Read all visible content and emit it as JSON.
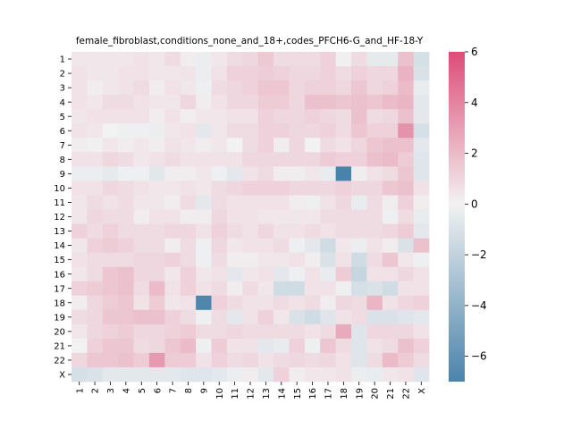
{
  "chart_data": {
    "type": "heatmap",
    "title": "female_fibroblast,conditions_none_and_18+,codes_PFCH6-G_and_HF-18-Y",
    "xlabel": "",
    "ylabel": "",
    "row_labels": [
      "1",
      "2",
      "3",
      "4",
      "5",
      "6",
      "7",
      "8",
      "9",
      "10",
      "11",
      "12",
      "13",
      "14",
      "15",
      "16",
      "17",
      "18",
      "19",
      "20",
      "21",
      "22",
      "X"
    ],
    "col_labels": [
      "1",
      "2",
      "3",
      "4",
      "5",
      "6",
      "7",
      "8",
      "9",
      "10",
      "11",
      "12",
      "13",
      "14",
      "15",
      "16",
      "17",
      "18",
      "19",
      "20",
      "21",
      "22",
      "X"
    ],
    "colorbar": {
      "vmin": -7,
      "vmax": 6,
      "ticks": [
        "6",
        "4",
        "2",
        "0",
        "−2",
        "−4",
        "−6"
      ],
      "tick_values": [
        6,
        4,
        2,
        0,
        -2,
        -4,
        -6
      ],
      "colors": {
        "low": "#4a83aa",
        "mid": "#f2f2f2",
        "high": "#dc4d78"
      }
    },
    "values": [
      [
        0.4,
        0.4,
        0.4,
        0.4,
        0.6,
        0.4,
        0.8,
        0.2,
        -0.3,
        0.4,
        0.8,
        1.0,
        1.5,
        0.8,
        0.8,
        0.8,
        1.2,
        -0.1,
        0.8,
        -0.5,
        -0.5,
        1.8,
        -1.2
      ],
      [
        0.6,
        0.4,
        0.4,
        0.6,
        0.6,
        0.4,
        0.4,
        0.5,
        -0.3,
        0.6,
        1.2,
        1.2,
        1.3,
        1.2,
        1.0,
        1.0,
        1.2,
        0.8,
        1.2,
        1.0,
        1.0,
        2.3,
        -1.0
      ],
      [
        0.6,
        0.2,
        0.4,
        0.6,
        0.8,
        0.2,
        0.6,
        0.4,
        -0.2,
        0.8,
        1.0,
        1.2,
        1.6,
        1.6,
        1.0,
        1.2,
        1.2,
        1.0,
        1.6,
        1.0,
        1.2,
        2.0,
        -0.4
      ],
      [
        0.6,
        0.4,
        0.8,
        0.8,
        0.6,
        0.4,
        0.4,
        1.0,
        0.2,
        0.6,
        1.0,
        1.0,
        1.4,
        1.4,
        1.0,
        1.8,
        1.8,
        1.6,
        1.8,
        1.6,
        2.0,
        2.2,
        -0.6
      ],
      [
        0.4,
        0.6,
        0.6,
        0.6,
        0.6,
        0.2,
        0.6,
        0.2,
        0.4,
        0.4,
        0.6,
        0.6,
        1.2,
        1.0,
        1.0,
        1.2,
        1.0,
        0.8,
        1.8,
        0.8,
        1.0,
        1.8,
        -0.6
      ],
      [
        0.6,
        0.4,
        0.0,
        -0.2,
        -0.2,
        -0.3,
        0.4,
        0.6,
        -0.6,
        0.4,
        0.8,
        0.8,
        1.2,
        1.2,
        1.0,
        1.0,
        1.2,
        0.8,
        1.6,
        1.2,
        1.2,
        3.5,
        -1.2
      ],
      [
        0.2,
        -0.1,
        0.4,
        0.2,
        0.4,
        0.2,
        0.6,
        0.4,
        0.2,
        0.4,
        0.0,
        0.8,
        1.2,
        0.2,
        1.0,
        0.0,
        0.8,
        0.6,
        1.0,
        1.6,
        1.8,
        1.8,
        -0.6
      ],
      [
        0.6,
        0.6,
        1.0,
        0.8,
        0.4,
        0.6,
        0.8,
        0.6,
        0.6,
        0.6,
        0.6,
        1.0,
        1.0,
        1.0,
        1.0,
        1.0,
        1.4,
        1.2,
        1.2,
        1.8,
        2.0,
        1.4,
        -0.8
      ],
      [
        -0.3,
        -0.3,
        -0.5,
        -0.2,
        -0.2,
        -0.7,
        0.2,
        0.2,
        0.4,
        -0.2,
        -0.6,
        0.6,
        0.8,
        0.2,
        0.2,
        0.4,
        -0.4,
        -7.0,
        0.2,
        0.6,
        0.8,
        1.6,
        -0.8
      ],
      [
        0.6,
        0.6,
        1.0,
        0.8,
        0.6,
        0.4,
        0.4,
        0.6,
        0.4,
        0.8,
        1.0,
        1.2,
        1.2,
        1.2,
        1.0,
        1.0,
        1.0,
        1.2,
        1.0,
        1.0,
        1.6,
        1.8,
        0.6
      ],
      [
        0.4,
        0.8,
        0.6,
        0.8,
        0.4,
        0.4,
        0.2,
        0.8,
        -0.6,
        0.8,
        0.6,
        0.6,
        0.6,
        0.6,
        0.2,
        -0.2,
        0.6,
        1.0,
        -0.4,
        0.8,
        0.2,
        1.2,
        0.2
      ],
      [
        0.4,
        1.0,
        0.8,
        0.8,
        0.2,
        0.6,
        0.6,
        0.2,
        0.2,
        1.0,
        0.6,
        0.6,
        0.4,
        0.4,
        0.4,
        0.4,
        0.8,
        0.8,
        0.8,
        0.8,
        -0.2,
        0.8,
        -0.4
      ],
      [
        1.2,
        0.8,
        1.2,
        0.8,
        0.8,
        0.8,
        1.0,
        1.0,
        0.6,
        1.2,
        0.8,
        0.6,
        1.0,
        0.6,
        0.6,
        0.8,
        0.6,
        0.8,
        0.8,
        0.8,
        1.0,
        1.4,
        -0.6
      ],
      [
        0.4,
        1.2,
        1.4,
        1.2,
        0.8,
        0.8,
        0.2,
        0.8,
        -0.2,
        1.0,
        0.4,
        0.6,
        0.6,
        0.8,
        -0.2,
        -0.6,
        -1.4,
        0.4,
        -0.3,
        0.6,
        0.2,
        -1.0,
        1.8
      ],
      [
        0.6,
        0.8,
        0.8,
        0.8,
        1.0,
        1.0,
        1.2,
        0.8,
        -0.2,
        0.8,
        0.2,
        0.2,
        0.4,
        0.4,
        0.6,
        0.2,
        -1.0,
        0.6,
        -1.4,
        0.8,
        1.6,
        0.4,
        -0.2
      ],
      [
        0.4,
        0.8,
        1.6,
        1.8,
        1.0,
        1.0,
        0.4,
        1.2,
        0.4,
        0.6,
        -0.6,
        0.4,
        0.6,
        -0.6,
        -0.2,
        0.6,
        -0.4,
        1.4,
        -1.8,
        0.6,
        0.6,
        1.0,
        0.6
      ],
      [
        1.2,
        1.4,
        1.6,
        1.8,
        0.8,
        2.0,
        0.6,
        1.2,
        0.6,
        0.8,
        0.2,
        0.8,
        0.4,
        -1.4,
        -1.4,
        0.6,
        0.6,
        -0.2,
        -1.2,
        -1.0,
        -1.4,
        0.6,
        0.6
      ],
      [
        0.2,
        1.0,
        1.4,
        1.6,
        0.6,
        1.4,
        0.4,
        0.6,
        -6.8,
        1.2,
        0.8,
        0.6,
        0.6,
        0.8,
        0.6,
        0.8,
        0.2,
        1.0,
        0.8,
        2.2,
        0.6,
        1.0,
        1.2
      ],
      [
        0.8,
        1.0,
        1.6,
        1.6,
        1.8,
        1.8,
        1.2,
        0.8,
        -0.2,
        0.8,
        -0.6,
        0.6,
        1.2,
        0.4,
        -1.0,
        -1.4,
        -0.8,
        0.6,
        0.8,
        -1.0,
        -1.0,
        -0.8,
        -0.6
      ],
      [
        0.4,
        1.0,
        1.2,
        1.4,
        1.0,
        1.0,
        1.2,
        1.4,
        0.8,
        0.8,
        1.0,
        0.8,
        0.8,
        0.8,
        0.8,
        0.6,
        0.8,
        2.6,
        -0.8,
        1.0,
        1.0,
        1.0,
        0.6
      ],
      [
        0.0,
        1.2,
        1.6,
        1.6,
        0.8,
        1.0,
        1.6,
        2.0,
        -0.2,
        1.4,
        0.6,
        0.6,
        -0.6,
        -0.4,
        1.2,
        -0.2,
        1.6,
        0.8,
        -0.8,
        0.6,
        0.8,
        1.8,
        1.2
      ],
      [
        1.0,
        1.6,
        1.6,
        1.8,
        1.4,
        3.2,
        1.4,
        1.4,
        0.6,
        1.2,
        0.8,
        1.0,
        0.6,
        0.8,
        1.0,
        0.8,
        1.0,
        0.6,
        -0.8,
        0.8,
        2.0,
        1.4,
        0.8
      ],
      [
        -1.2,
        -1.0,
        -0.6,
        -0.6,
        -0.6,
        -0.6,
        -0.6,
        -0.8,
        -0.8,
        -0.6,
        -0.3,
        0.2,
        -0.6,
        1.2,
        0.2,
        0.4,
        0.4,
        0.6,
        -0.3,
        -0.4,
        0.4,
        0.6,
        -0.8
      ]
    ]
  }
}
